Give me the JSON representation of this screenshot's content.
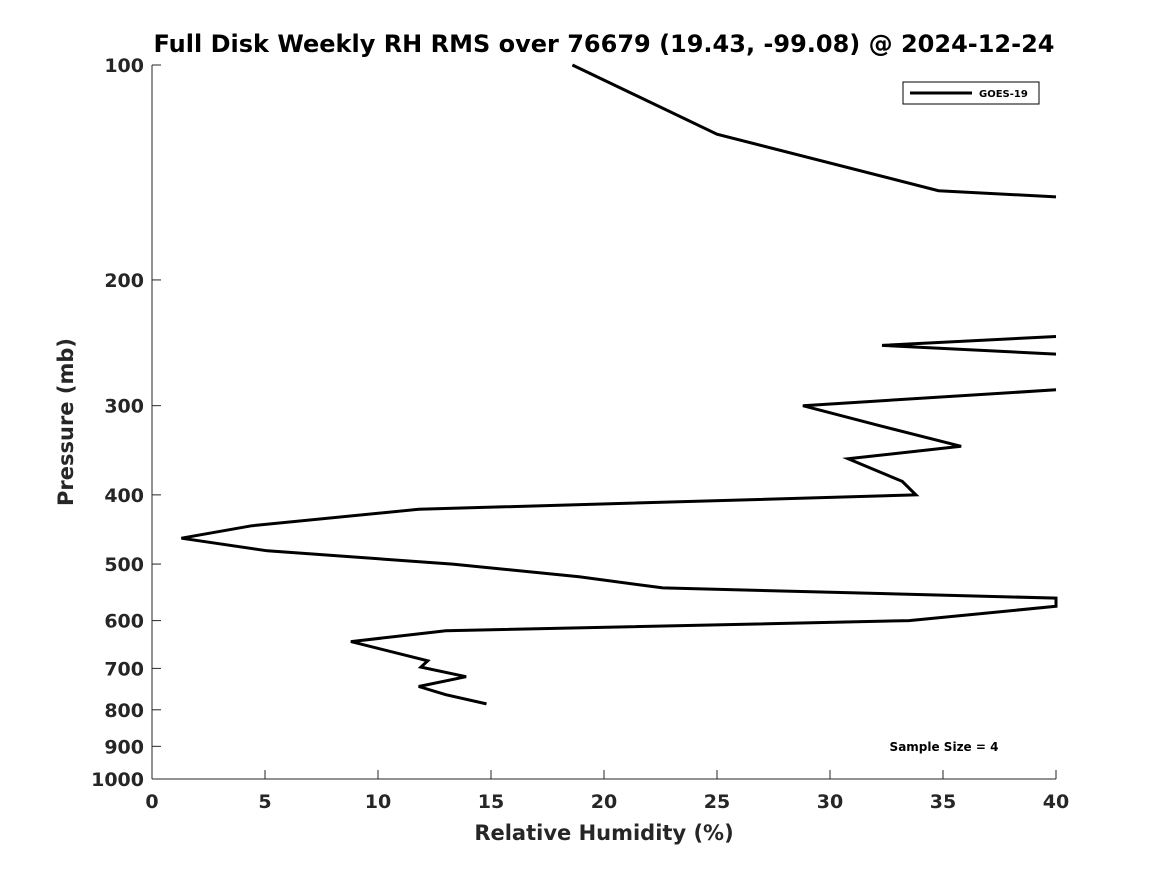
{
  "chart_data": {
    "type": "line",
    "title": "Full Disk Weekly RH RMS over 76679 (19.43, -99.08) @ 2024-12-24",
    "xlabel": "Relative Humidity (%)",
    "ylabel": "Pressure (mb)",
    "xlim": [
      0,
      40
    ],
    "ylim": [
      100,
      1000
    ],
    "y_scale": "log",
    "y_reversed": true,
    "x_ticks": [
      0,
      5,
      10,
      15,
      20,
      25,
      30,
      35,
      40
    ],
    "y_ticks": [
      100,
      200,
      300,
      400,
      500,
      600,
      700,
      800,
      900,
      1000
    ],
    "grid": false,
    "legend_position": "top-right",
    "annotation": "Sample Size = 4",
    "series": [
      {
        "name": "GOES-19",
        "color": "#000000",
        "points": [
          [
            18.6,
            100
          ],
          [
            25.0,
            125
          ],
          [
            34.8,
            150
          ],
          [
            40.0,
            153
          ],
          [
            null,
            240
          ],
          [
            40.0,
            240
          ],
          [
            32.3,
            247
          ],
          [
            40.0,
            254
          ],
          [
            null,
            280
          ],
          [
            40.0,
            285
          ],
          [
            28.8,
            300
          ],
          [
            32.2,
            320
          ],
          [
            35.8,
            342
          ],
          [
            30.8,
            356
          ],
          [
            33.2,
            383
          ],
          [
            33.8,
            400
          ],
          [
            11.8,
            419
          ],
          [
            4.4,
            442
          ],
          [
            1.3,
            460
          ],
          [
            5.1,
            479
          ],
          [
            13.3,
            500
          ],
          [
            18.9,
            521
          ],
          [
            22.6,
            540
          ],
          [
            40.0,
            558
          ],
          [
            40.0,
            573
          ],
          [
            33.5,
            600
          ],
          [
            13.0,
            620
          ],
          [
            8.8,
            642
          ],
          [
            12.2,
            683
          ],
          [
            11.9,
            697
          ],
          [
            13.9,
            719
          ],
          [
            11.8,
            742
          ],
          [
            13.0,
            762
          ],
          [
            14.8,
            785
          ]
        ]
      }
    ]
  }
}
